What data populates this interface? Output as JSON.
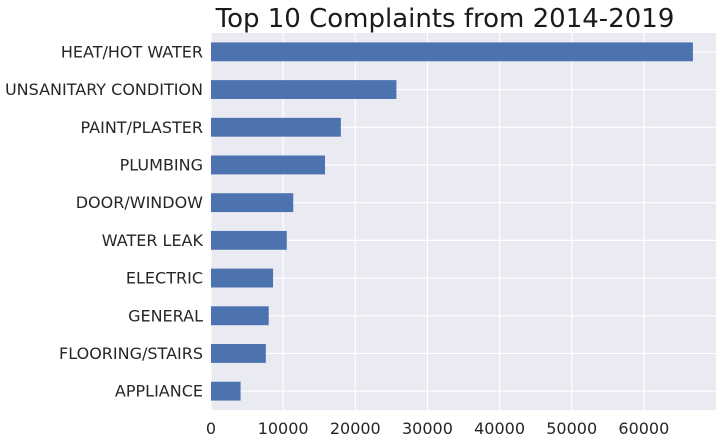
{
  "chart_data": {
    "type": "bar",
    "orientation": "horizontal",
    "title": "Top 10 Complaints from 2014-2019",
    "xlabel": "",
    "ylabel": "",
    "categories": [
      "HEAT/HOT WATER",
      "UNSANITARY CONDITION",
      "PAINT/PLASTER",
      "PLUMBING",
      "DOOR/WINDOW",
      "WATER LEAK",
      "ELECTRIC",
      "GENERAL",
      "FLOORING/STAIRS",
      "APPLIANCE"
    ],
    "values": [
      66800,
      25700,
      18000,
      15800,
      11400,
      10500,
      8600,
      8000,
      7600,
      4100
    ],
    "xlim": [
      0,
      70000
    ],
    "xticks": [
      0,
      10000,
      20000,
      30000,
      40000,
      50000,
      60000
    ],
    "xtick_labels": [
      "0",
      "10000",
      "20000",
      "30000",
      "40000",
      "50000",
      "60000"
    ],
    "grid": true,
    "colors": {
      "bar": "#4c72b0",
      "plot_background": "#eaeaf2",
      "grid": "#ffffff"
    }
  }
}
